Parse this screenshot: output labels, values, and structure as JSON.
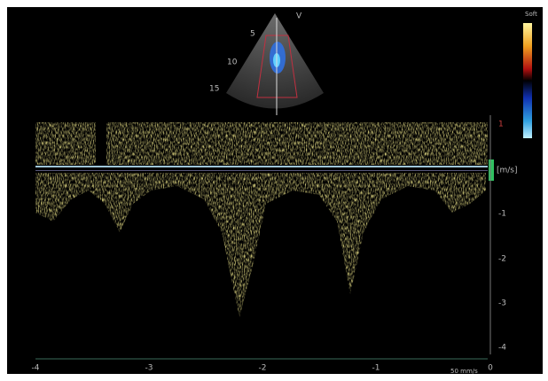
{
  "header": {
    "view": "V",
    "color_map": "Soft"
  },
  "depth_labels": [
    "5",
    "10",
    "15"
  ],
  "velocity_unit": "[m/s]",
  "velocity_labels": [
    "1",
    "-1",
    "-2",
    "-3",
    "-4"
  ],
  "time_labels": [
    "-4",
    "-3",
    "-2",
    "-1",
    "0"
  ],
  "sweep_speed": "50 mm/s"
}
